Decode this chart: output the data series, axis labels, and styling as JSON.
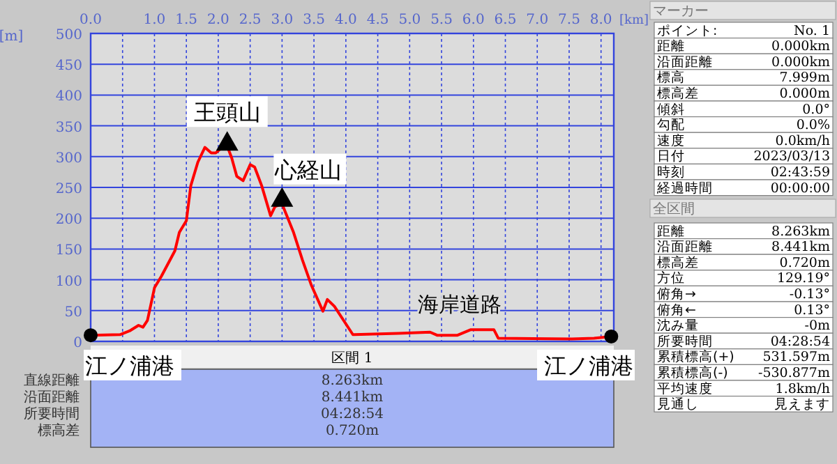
{
  "chart_data": {
    "type": "line",
    "xlabel": "[km]",
    "ylabel": "[m]",
    "x": [
      0,
      0.46,
      0.61,
      0.75,
      0.82,
      0.89,
      1.0,
      1.11,
      1.32,
      1.39,
      1.5,
      1.57,
      1.68,
      1.79,
      1.89,
      1.96,
      2.04,
      2.14,
      2.21,
      2.29,
      2.39,
      2.5,
      2.57,
      2.68,
      2.82,
      2.89,
      3.0,
      3.18,
      3.32,
      3.46,
      3.64,
      3.71,
      3.82,
      4.11,
      4.82,
      5.32,
      5.43,
      5.75,
      5.96,
      6.32,
      6.39,
      7.54,
      7.89,
      8.16
    ],
    "series": [
      {
        "color": "#ff0000",
        "values": [
          10,
          11,
          17,
          26,
          23,
          34,
          87,
          106,
          147,
          177,
          196,
          253,
          291,
          315,
          306,
          306,
          313,
          317,
          298,
          268,
          261,
          287,
          283,
          253,
          204,
          219,
          223,
          177,
          132,
          91,
          49,
          68,
          57,
          11,
          13,
          15,
          10,
          10,
          19,
          19,
          5,
          4,
          5,
          8
        ]
      }
    ],
    "xlim": [
      0,
      8.2
    ],
    "xticks": [
      {
        "value": 0,
        "label": "0.0"
      },
      {
        "value": 0.5,
        "label": null
      },
      {
        "value": 1,
        "label": "1.0"
      },
      1.5,
      {
        "value": 2,
        "label": "2.0"
      },
      2.5,
      {
        "value": 3,
        "label": "3.0"
      },
      3.5,
      {
        "value": 4,
        "label": "4.0"
      },
      4.5,
      {
        "value": 5,
        "label": "5.0"
      },
      5.5,
      {
        "value": 6,
        "label": "6.0"
      },
      6.5,
      {
        "value": 7,
        "label": "7.0"
      },
      7.5,
      {
        "value": 8,
        "label": "8.0"
      }
    ],
    "ylim": [
      0,
      500
    ],
    "yticks": [
      0,
      50,
      100,
      150,
      200,
      250,
      300,
      350,
      400,
      450,
      500
    ],
    "grid": true,
    "marker": "none",
    "line_style": "solid",
    "annotations": [
      {
        "text": "王頭山",
        "x": 2.14,
        "y": 321
      },
      {
        "text": "心経山",
        "x": 3.0,
        "y": 230
      },
      {
        "text": "海岸道路",
        "x": 6.0,
        "y": 19
      },
      {
        "text": "江ノ浦港",
        "x": 0,
        "y": 10
      },
      {
        "text": "江ノ浦港",
        "x": 8.16,
        "y": 8
      },
      "区間 1",
      "直線距離",
      "8.263km",
      "沿面距離",
      "8.441km",
      "所要時間",
      "04:28:54",
      "標高差",
      "0.720m",
      "マーカー",
      "ポイント:",
      "No. 1",
      "距離",
      "0.000km",
      "沿面距離",
      "0.000km",
      "標高",
      "7.999m",
      "標高差",
      "0.000m",
      "傾斜",
      "0.0°",
      "勾配",
      "0.0%",
      "速度",
      "0.0km/h",
      "日付",
      "2023/03/13",
      "時刻",
      "02:43:59",
      "経過時間",
      "00:00:00",
      "全区間",
      "距離",
      "8.263km",
      "沿面距離",
      "8.441km",
      "標高差",
      "0.720m",
      "方位",
      "129.19°",
      "俯角→",
      "-0.13°",
      "俯角←",
      "0.13°",
      "沈み量",
      "-0m",
      "所要時間",
      "04:28:54",
      "累積標高(+)",
      "531.597m",
      "累積標高(-)",
      "-530.877m",
      "平均速度",
      "1.8km/h",
      "見通し",
      "見えます"
    ]
  }
}
